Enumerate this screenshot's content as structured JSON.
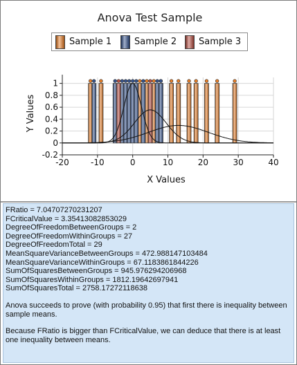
{
  "chart_data": {
    "type": "bar",
    "title": "Anova Test Sample",
    "xlabel": "X Values",
    "ylabel": "Y Values",
    "xlim": [
      -20,
      40
    ],
    "ylim": [
      -0.2,
      1.1
    ],
    "x_ticks": [
      "-20",
      "-10",
      "0",
      "10",
      "20",
      "30",
      "40"
    ],
    "y_ticks": [
      "-0.2",
      "0",
      "0.2",
      "0.4",
      "0.6",
      "0.8",
      "1"
    ],
    "grid": true,
    "legend": "top",
    "series": [
      {
        "name": "Sample 1",
        "color": "#e8781c",
        "x": [
          -12,
          -9,
          2,
          4,
          6,
          8,
          11,
          13,
          16,
          18,
          21,
          24,
          29
        ],
        "values": [
          1,
          1,
          1,
          1,
          1,
          1,
          1,
          1,
          1,
          1,
          1,
          1,
          1
        ]
      },
      {
        "name": "Sample 2",
        "color": "#2b4a86",
        "x": [
          -11,
          -5,
          -3,
          -2,
          -1,
          0,
          1,
          3,
          7,
          8
        ],
        "values": [
          1,
          1,
          1,
          1,
          1,
          1,
          1,
          1,
          1,
          1
        ]
      },
      {
        "name": "Sample 3",
        "color": "#b5473a",
        "x": [
          -4,
          5
        ],
        "values": [
          1,
          1
        ]
      }
    ],
    "curves": [
      {
        "kind": "normal",
        "mean": 0,
        "sd": 2.5
      },
      {
        "kind": "normal",
        "mean": 5,
        "sd": 4.5
      },
      {
        "kind": "normal",
        "mean": 13,
        "sd": 8.5
      }
    ]
  },
  "stats": {
    "lines": [
      "FRatio = 7.04707270231207",
      "FCriticalValue = 3.35413082853029",
      "DegreeOfFreedomBetweenGroups = 2",
      "DegreeOfFreedomWithinGroups = 27",
      "DegreeOfFreedomTotal = 29",
      "MeanSquareVarianceBetweenGroups = 472.988147103484",
      "MeanSquareVarianceWithinGroups = 67.1183861844226",
      "SumOfSquaresBetweenGroups = 945.976294206968",
      "SumOfSquaresWithinGroups = 1812.19642697941",
      "SumOfSquaresTotal = 2758.17272118638"
    ],
    "conclusion1": "Anova succeeds to prove (with probability 0.95) that first there is inequality between sample means.",
    "conclusion2": "Because FRatio is bigger than FCriticalValue, we can deduce that there is at least one inequality between means."
  }
}
